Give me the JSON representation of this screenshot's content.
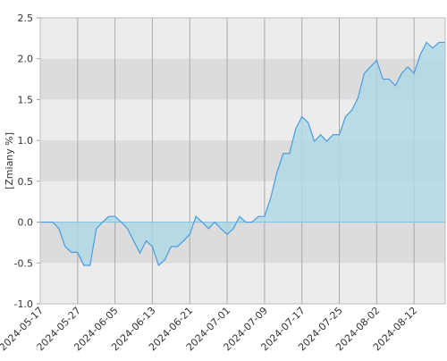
{
  "chart_data": {
    "type": "area",
    "y_label": "[Zmiany %]",
    "categories": [
      "2024-05-17",
      null,
      null,
      null,
      null,
      null,
      "2024-05-27",
      null,
      null,
      null,
      null,
      null,
      "2024-06-05",
      null,
      null,
      null,
      null,
      null,
      "2024-06-13",
      null,
      null,
      null,
      null,
      null,
      "2024-06-21",
      null,
      null,
      null,
      null,
      null,
      "2024-07-01",
      null,
      null,
      null,
      null,
      null,
      "2024-07-09",
      null,
      null,
      null,
      null,
      null,
      "2024-07-17",
      null,
      null,
      null,
      null,
      null,
      "2024-07-25",
      null,
      null,
      null,
      null,
      null,
      "2024-08-02",
      null,
      null,
      null,
      null,
      null,
      "2024-08-12",
      null,
      null,
      null,
      null,
      null
    ],
    "values": [
      0,
      0,
      0,
      -0.08,
      -0.3,
      -0.37,
      -0.37,
      -0.53,
      -0.53,
      -0.08,
      0,
      0.07,
      0.07,
      0,
      -0.08,
      -0.23,
      -0.38,
      -0.23,
      -0.3,
      -0.53,
      -0.46,
      -0.3,
      -0.3,
      -0.23,
      -0.15,
      0.07,
      0,
      -0.08,
      0,
      -0.08,
      -0.15,
      -0.08,
      0.07,
      0,
      0,
      0.07,
      0.07,
      0.3,
      0.61,
      0.84,
      0.84,
      1.14,
      1.29,
      1.22,
      0.99,
      1.07,
      0.99,
      1.07,
      1.07,
      1.29,
      1.37,
      1.52,
      1.82,
      1.9,
      1.98,
      1.75,
      1.75,
      1.67,
      1.82,
      1.9,
      1.82,
      2.05,
      2.2,
      2.13,
      2.2,
      2.2
    ],
    "color": "#4a9be0",
    "fill_color": "#add8e6",
    "ylim": [
      -1.0,
      2.5
    ],
    "yticks": [
      {
        "value": -1.0,
        "label": "-1.0"
      },
      -0.5,
      {
        "value": 0,
        "label": "0.0"
      },
      0.5,
      {
        "value": 1.0,
        "label": "1.0"
      },
      1.5,
      {
        "value": 2.0,
        "label": "2.0"
      },
      2.5
    ],
    "grid": true
  }
}
